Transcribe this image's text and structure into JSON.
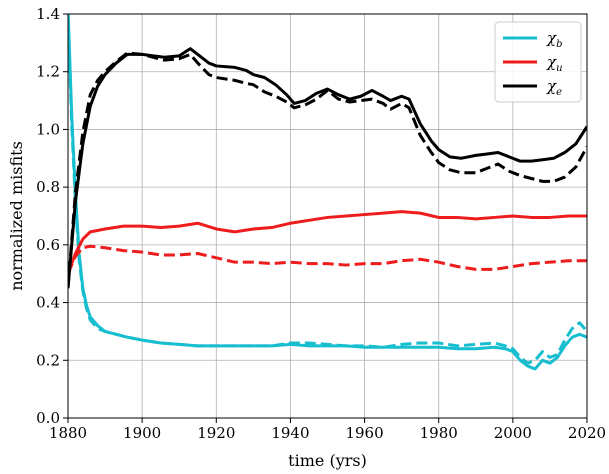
{
  "chart_data": {
    "type": "line",
    "title": "",
    "xlabel": "time (yrs)",
    "ylabel": "normalized misfits",
    "xlim": [
      1880,
      2020
    ],
    "ylim": [
      0.0,
      1.4
    ],
    "grid": true,
    "legend_position": "top-right",
    "x_ticks": [
      1880,
      1900,
      1920,
      1940,
      1960,
      1980,
      2000,
      2020
    ],
    "x_tick_labels": [
      "1880",
      "1900",
      "1920",
      "1940",
      "1960",
      "1980",
      "2000",
      "2020"
    ],
    "y_ticks": [
      0.0,
      0.2,
      0.4,
      0.6,
      0.8,
      1.0,
      1.2,
      1.4
    ],
    "y_tick_labels": [
      "0.0",
      "0.2",
      "0.4",
      "0.6",
      "0.8",
      "1.0",
      "1.2",
      "1.4"
    ],
    "legend": [
      {
        "symbol": "χ",
        "subscript": "b",
        "color": "#17becf"
      },
      {
        "symbol": "χ",
        "subscript": "u",
        "color": "#ee1c1c"
      },
      {
        "symbol": "χ",
        "subscript": "e",
        "color": "#000000"
      }
    ],
    "series": [
      {
        "name": "χb",
        "color": "#17becf",
        "style": "solid",
        "x": [
          1880,
          1881,
          1882,
          1883,
          1884,
          1885,
          1886,
          1888,
          1890,
          1893,
          1896,
          1900,
          1905,
          1910,
          1915,
          1920,
          1925,
          1930,
          1935,
          1940,
          1945,
          1950,
          1955,
          1960,
          1965,
          1970,
          1975,
          1980,
          1985,
          1990,
          1995,
          1998,
          2000,
          2002,
          2004,
          2006,
          2008,
          2010,
          2012,
          2014,
          2016,
          2018,
          2020
        ],
        "y": [
          1.42,
          1.05,
          0.78,
          0.57,
          0.45,
          0.39,
          0.35,
          0.32,
          0.3,
          0.29,
          0.28,
          0.27,
          0.26,
          0.255,
          0.25,
          0.25,
          0.25,
          0.25,
          0.25,
          0.255,
          0.25,
          0.25,
          0.25,
          0.245,
          0.245,
          0.245,
          0.245,
          0.245,
          0.24,
          0.24,
          0.245,
          0.24,
          0.23,
          0.2,
          0.18,
          0.17,
          0.2,
          0.19,
          0.21,
          0.25,
          0.28,
          0.29,
          0.28
        ]
      },
      {
        "name": "χb dashed",
        "color": "#17becf",
        "style": "dashed",
        "x": [
          1880,
          1881,
          1882,
          1883,
          1884,
          1885,
          1886,
          1888,
          1890,
          1893,
          1896,
          1900,
          1905,
          1910,
          1915,
          1920,
          1925,
          1930,
          1935,
          1940,
          1945,
          1950,
          1955,
          1960,
          1965,
          1970,
          1975,
          1980,
          1985,
          1990,
          1995,
          1998,
          2000,
          2002,
          2004,
          2006,
          2008,
          2010,
          2012,
          2014,
          2016,
          2018,
          2020
        ],
        "y": [
          1.4,
          1.02,
          0.75,
          0.55,
          0.44,
          0.38,
          0.34,
          0.31,
          0.3,
          0.29,
          0.28,
          0.27,
          0.26,
          0.255,
          0.25,
          0.25,
          0.25,
          0.25,
          0.25,
          0.26,
          0.26,
          0.255,
          0.25,
          0.25,
          0.245,
          0.255,
          0.26,
          0.26,
          0.25,
          0.255,
          0.26,
          0.25,
          0.24,
          0.21,
          0.19,
          0.2,
          0.23,
          0.21,
          0.22,
          0.27,
          0.31,
          0.33,
          0.3
        ]
      },
      {
        "name": "χu",
        "color": "#ee1c1c",
        "style": "solid",
        "x": [
          1880,
          1882,
          1884,
          1886,
          1890,
          1895,
          1900,
          1905,
          1910,
          1915,
          1920,
          1925,
          1930,
          1935,
          1940,
          1945,
          1950,
          1955,
          1960,
          1965,
          1970,
          1975,
          1980,
          1985,
          1990,
          1995,
          2000,
          2005,
          2010,
          2015,
          2020
        ],
        "y": [
          0.5,
          0.57,
          0.62,
          0.645,
          0.655,
          0.665,
          0.665,
          0.66,
          0.665,
          0.675,
          0.655,
          0.645,
          0.655,
          0.66,
          0.675,
          0.685,
          0.695,
          0.7,
          0.705,
          0.71,
          0.715,
          0.71,
          0.695,
          0.695,
          0.69,
          0.695,
          0.7,
          0.695,
          0.695,
          0.7,
          0.7
        ]
      },
      {
        "name": "χu dashed",
        "color": "#ee1c1c",
        "style": "dashed",
        "x": [
          1880,
          1882,
          1884,
          1886,
          1890,
          1895,
          1900,
          1905,
          1910,
          1915,
          1920,
          1925,
          1930,
          1935,
          1940,
          1945,
          1950,
          1955,
          1960,
          1965,
          1970,
          1975,
          1980,
          1985,
          1990,
          1995,
          2000,
          2005,
          2010,
          2015,
          2020
        ],
        "y": [
          0.5,
          0.56,
          0.59,
          0.595,
          0.59,
          0.58,
          0.575,
          0.565,
          0.565,
          0.57,
          0.555,
          0.54,
          0.54,
          0.535,
          0.54,
          0.535,
          0.535,
          0.53,
          0.535,
          0.535,
          0.545,
          0.55,
          0.54,
          0.525,
          0.515,
          0.515,
          0.525,
          0.535,
          0.54,
          0.545,
          0.545
        ]
      },
      {
        "name": "χe",
        "color": "#000000",
        "style": "solid",
        "x": [
          1880,
          1882,
          1884,
          1886,
          1888,
          1890,
          1893,
          1896,
          1900,
          1903,
          1906,
          1910,
          1913,
          1915,
          1918,
          1920,
          1925,
          1928,
          1930,
          1933,
          1936,
          1939,
          1941,
          1944,
          1947,
          1950,
          1953,
          1956,
          1959,
          1962,
          1965,
          1967,
          1970,
          1972,
          1975,
          1978,
          1980,
          1983,
          1986,
          1990,
          1993,
          1996,
          1999,
          2002,
          2005,
          2008,
          2011,
          2014,
          2017,
          2020
        ],
        "y": [
          0.45,
          0.75,
          0.95,
          1.08,
          1.15,
          1.19,
          1.23,
          1.26,
          1.26,
          1.255,
          1.25,
          1.255,
          1.28,
          1.26,
          1.23,
          1.22,
          1.215,
          1.205,
          1.19,
          1.18,
          1.155,
          1.12,
          1.09,
          1.1,
          1.125,
          1.14,
          1.12,
          1.105,
          1.115,
          1.135,
          1.115,
          1.1,
          1.115,
          1.105,
          1.02,
          0.96,
          0.93,
          0.905,
          0.9,
          0.91,
          0.915,
          0.92,
          0.905,
          0.89,
          0.89,
          0.895,
          0.9,
          0.92,
          0.95,
          1.01
        ]
      },
      {
        "name": "χe dashed",
        "color": "#000000",
        "style": "dashed",
        "x": [
          1880,
          1882,
          1884,
          1886,
          1888,
          1890,
          1893,
          1896,
          1900,
          1903,
          1906,
          1910,
          1913,
          1915,
          1918,
          1920,
          1925,
          1928,
          1930,
          1933,
          1936,
          1939,
          1941,
          1944,
          1947,
          1950,
          1953,
          1956,
          1959,
          1962,
          1965,
          1967,
          1970,
          1972,
          1975,
          1978,
          1980,
          1983,
          1986,
          1990,
          1993,
          1996,
          1999,
          2002,
          2005,
          2008,
          2011,
          2014,
          2017,
          2020
        ],
        "y": [
          0.45,
          0.78,
          0.99,
          1.12,
          1.17,
          1.2,
          1.235,
          1.265,
          1.26,
          1.25,
          1.24,
          1.245,
          1.26,
          1.23,
          1.19,
          1.18,
          1.17,
          1.16,
          1.155,
          1.13,
          1.115,
          1.095,
          1.075,
          1.085,
          1.105,
          1.135,
          1.105,
          1.095,
          1.1,
          1.105,
          1.09,
          1.07,
          1.09,
          1.075,
          0.98,
          0.92,
          0.885,
          0.86,
          0.85,
          0.85,
          0.865,
          0.88,
          0.855,
          0.84,
          0.83,
          0.82,
          0.82,
          0.835,
          0.87,
          0.94
        ]
      }
    ]
  }
}
